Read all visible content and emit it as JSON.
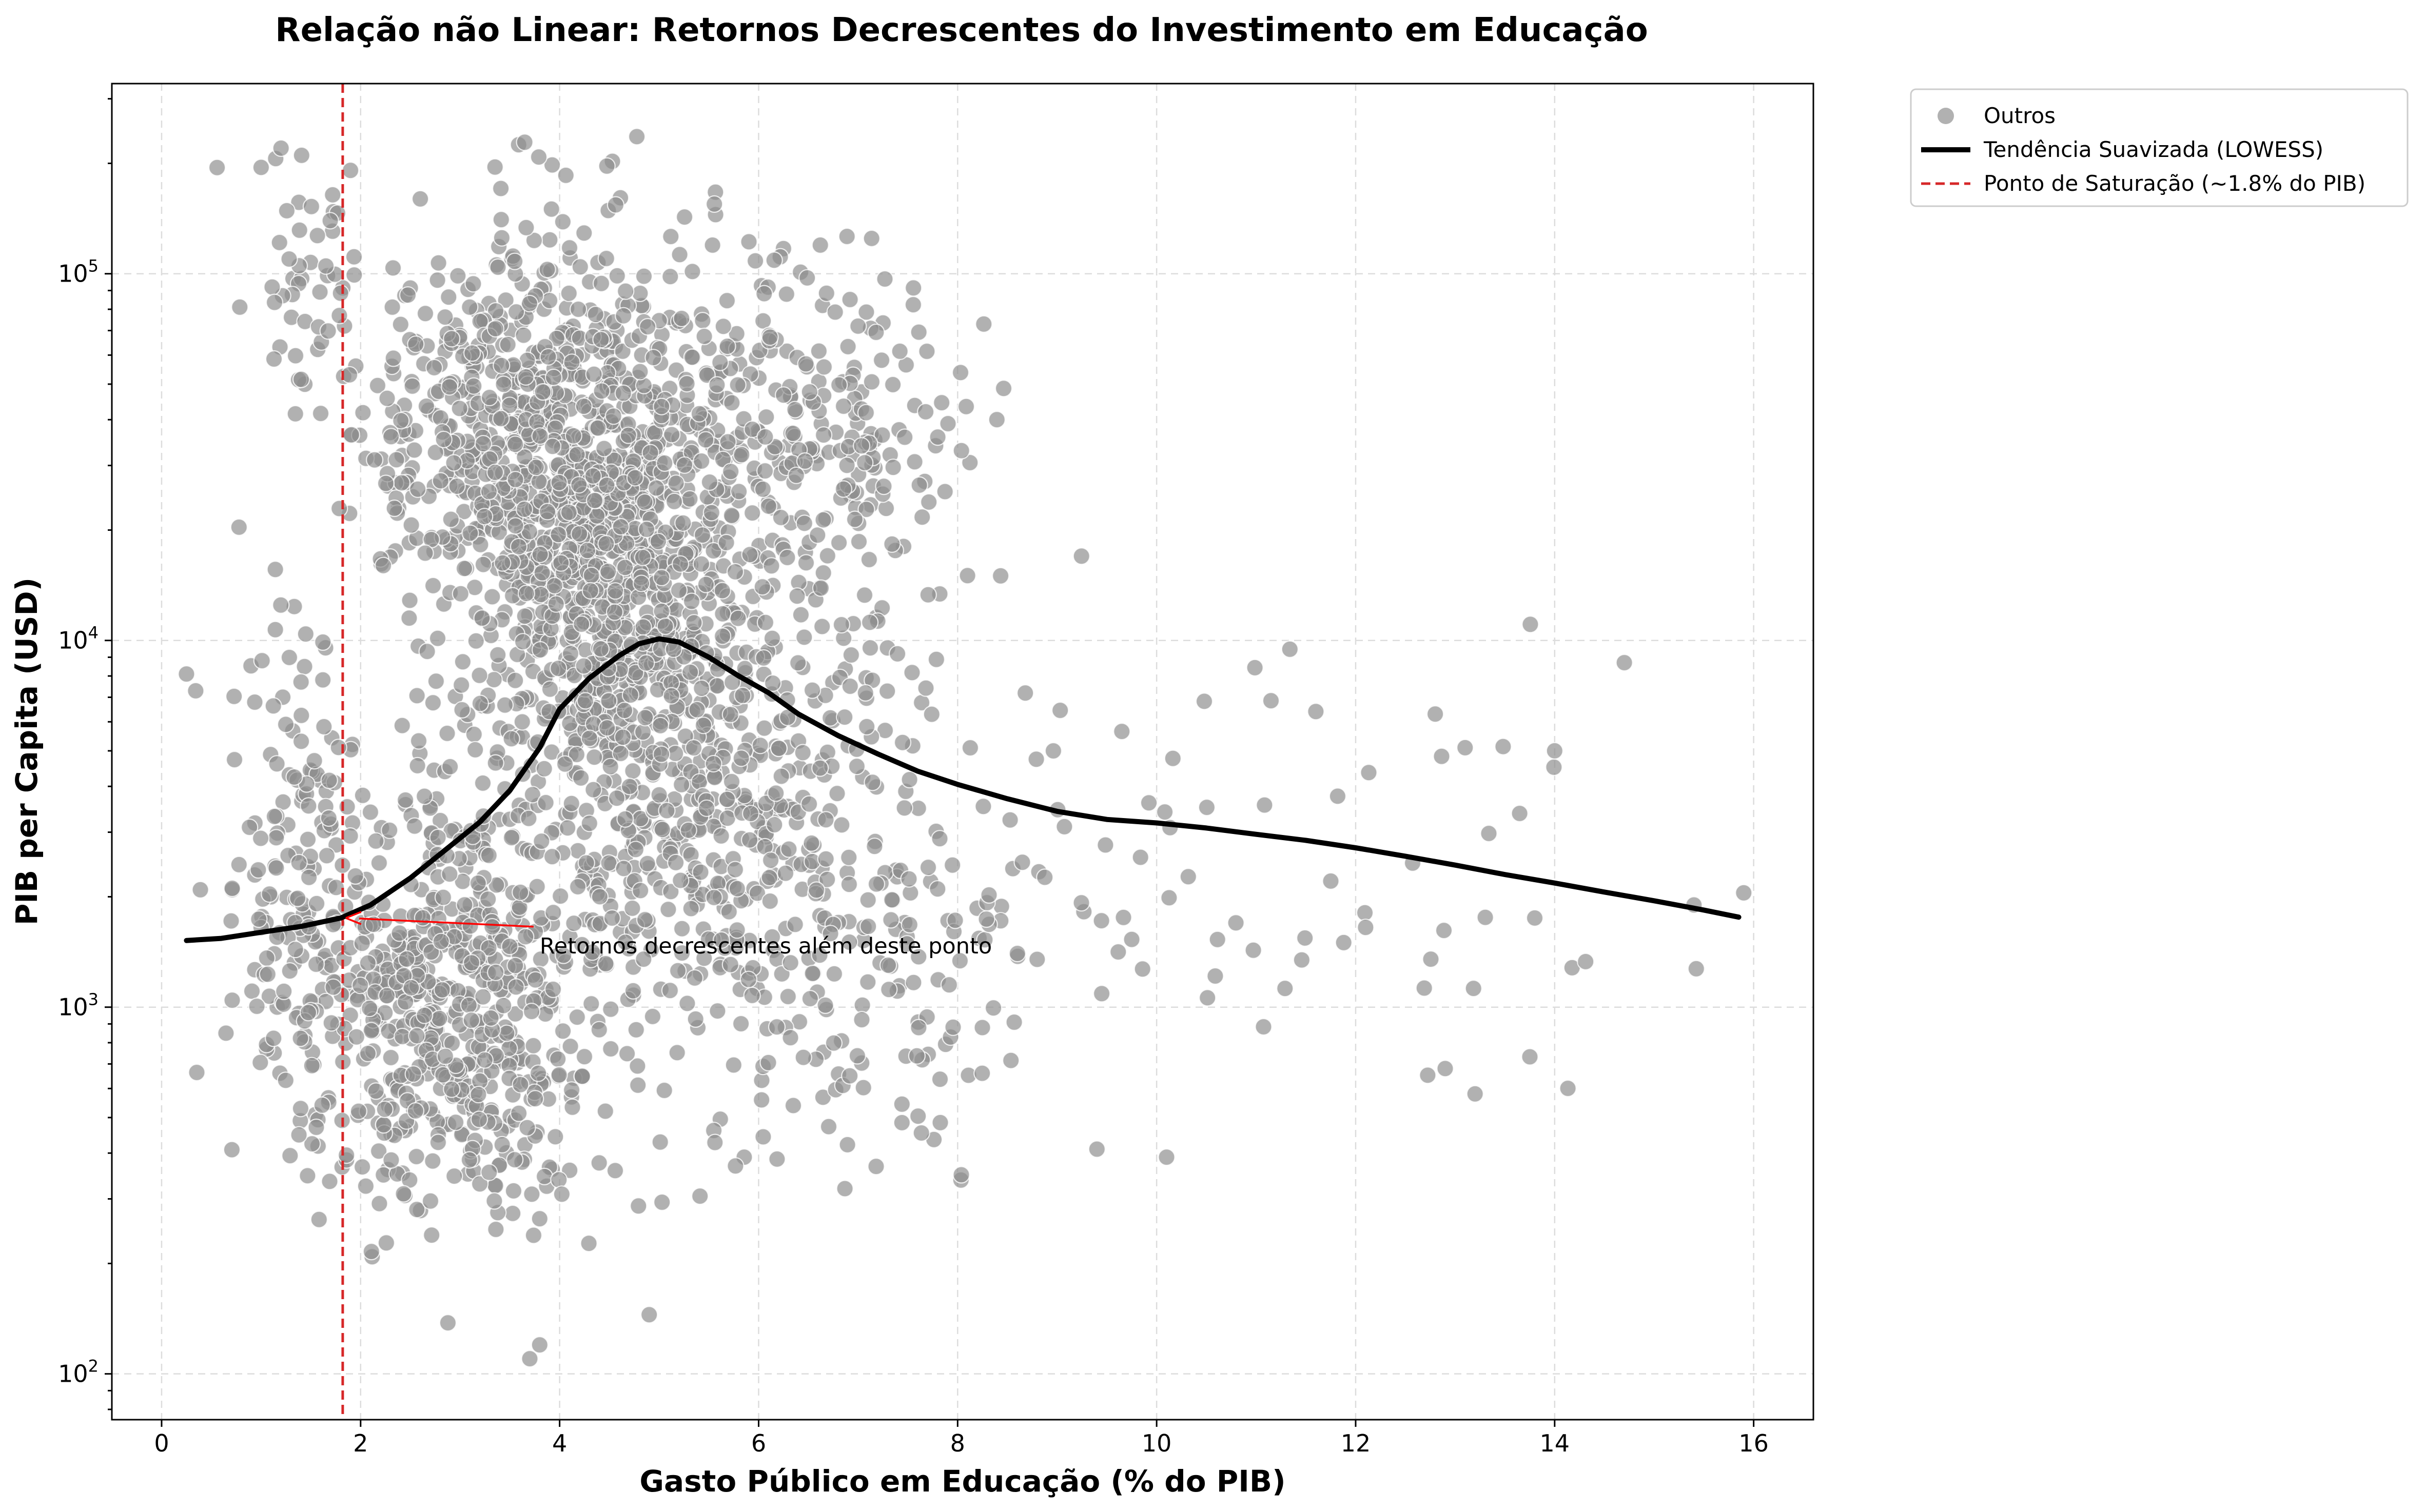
{
  "chart_data": {
    "type": "scatter",
    "title": "Relação não Linear: Retornos Decrescentes do Investimento em Educação",
    "xlabel": "Gasto Público em Educação (% do PIB)",
    "ylabel": "PIB per Capita (USD)",
    "xlim": [
      -0.5,
      16.6
    ],
    "ylim": [
      75,
      330000
    ],
    "yscale": "log",
    "grid": true,
    "legend_position": "outside-top-right",
    "x_ticks": [
      {
        "value": 0,
        "label": "0"
      },
      {
        "value": 2,
        "label": "2"
      },
      {
        "value": 4,
        "label": "4"
      },
      {
        "value": 6,
        "label": "6"
      },
      {
        "value": 8,
        "label": "8"
      },
      {
        "value": 10,
        "label": "10"
      },
      {
        "value": 12,
        "label": "12"
      },
      {
        "value": 14,
        "label": "14"
      },
      {
        "value": 16,
        "label": "16"
      }
    ],
    "y_ticks": [
      {
        "value": 100,
        "base": "10",
        "exp": "2"
      },
      {
        "value": 1000,
        "base": "10",
        "exp": "3"
      },
      {
        "value": 10000,
        "base": "10",
        "exp": "4"
      },
      {
        "value": 100000,
        "base": "10",
        "exp": "5"
      }
    ],
    "series": [
      {
        "name": "Outros",
        "kind": "scatter",
        "color": "#8c8c8c",
        "clusters": [
          {
            "x_mean": 4.4,
            "x_sd": 0.75,
            "log10y_mean": 4.3,
            "log10y_sd": 0.38,
            "count": 1100
          },
          {
            "x_mean": 2.9,
            "x_sd": 0.8,
            "log10y_mean": 3.0,
            "log10y_sd": 0.3,
            "count": 650
          },
          {
            "x_mean": 3.2,
            "x_sd": 0.7,
            "log10y_mean": 4.55,
            "log10y_sd": 0.25,
            "count": 320
          },
          {
            "x_mean": 5.3,
            "x_sd": 0.9,
            "log10y_mean": 3.55,
            "log10y_sd": 0.35,
            "count": 420
          },
          {
            "x_mean": 6.7,
            "x_sd": 0.75,
            "log10y_mean": 4.55,
            "log10y_sd": 0.25,
            "count": 230
          },
          {
            "x_mean": 6.9,
            "x_sd": 0.9,
            "log10y_mean": 3.3,
            "log10y_sd": 0.35,
            "count": 210
          },
          {
            "x_mean": 1.3,
            "x_sd": 0.35,
            "log10y_mean": 3.3,
            "log10y_sd": 0.35,
            "count": 130
          },
          {
            "x_mean": 1.4,
            "x_sd": 0.3,
            "log10y_mean": 5.05,
            "log10y_sd": 0.16,
            "count": 40
          },
          {
            "x_mean": 10.5,
            "x_sd": 2.3,
            "log10y_mean": 3.3,
            "log10y_sd": 0.3,
            "count": 90
          }
        ],
        "points": [
          {
            "x": 0.25,
            "y": 8100
          },
          {
            "x": 14.7,
            "y": 8700
          },
          {
            "x": 15.9,
            "y": 2050
          },
          {
            "x": 15.4,
            "y": 1900
          },
          {
            "x": 14.0,
            "y": 5000
          },
          {
            "x": 13.1,
            "y": 5100
          },
          {
            "x": 12.8,
            "y": 6300
          },
          {
            "x": 13.2,
            "y": 580
          },
          {
            "x": 12.9,
            "y": 680
          },
          {
            "x": 10.1,
            "y": 390
          },
          {
            "x": 9.4,
            "y": 410
          },
          {
            "x": 3.7,
            "y": 110
          },
          {
            "x": 3.8,
            "y": 120
          },
          {
            "x": 4.9,
            "y": 145
          },
          {
            "x": 1.2,
            "y": 220000
          },
          {
            "x": 1.0,
            "y": 195000
          },
          {
            "x": 2.6,
            "y": 160000
          },
          {
            "x": 13.8,
            "y": 1750
          },
          {
            "x": 12.1,
            "y": 1650
          },
          {
            "x": 11.6,
            "y": 6400
          }
        ]
      },
      {
        "name": "Tendência Suavizada (LOWESS)",
        "kind": "line",
        "color": "#000000",
        "x": [
          0.25,
          0.6,
          1.0,
          1.4,
          1.8,
          2.1,
          2.5,
          2.9,
          3.2,
          3.5,
          3.8,
          4.0,
          4.3,
          4.6,
          4.8,
          5.0,
          5.2,
          5.5,
          5.8,
          6.1,
          6.4,
          6.8,
          7.2,
          7.6,
          8.0,
          8.5,
          9.0,
          9.5,
          10.0,
          10.5,
          11.0,
          11.5,
          12.0,
          12.5,
          13.0,
          13.5,
          14.0,
          14.5,
          15.0,
          15.5,
          15.85
        ],
        "y": [
          1520,
          1540,
          1600,
          1660,
          1750,
          1900,
          2250,
          2750,
          3200,
          3900,
          5100,
          6500,
          7900,
          9100,
          9800,
          10100,
          9900,
          9000,
          8000,
          7200,
          6300,
          5500,
          4900,
          4400,
          4050,
          3700,
          3420,
          3250,
          3180,
          3080,
          2960,
          2850,
          2720,
          2580,
          2440,
          2300,
          2180,
          2060,
          1950,
          1840,
          1760
        ]
      },
      {
        "name": "Ponto de Saturação (~1.8% do PIB)",
        "kind": "vline",
        "color": "#d62728",
        "x": 1.82
      }
    ],
    "annotations": [
      {
        "text": "Retornos decrescentes além deste ponto",
        "xy": [
          1.82,
          1750
        ],
        "xytext": [
          3.8,
          1420
        ],
        "color": "#ff0000"
      }
    ]
  }
}
